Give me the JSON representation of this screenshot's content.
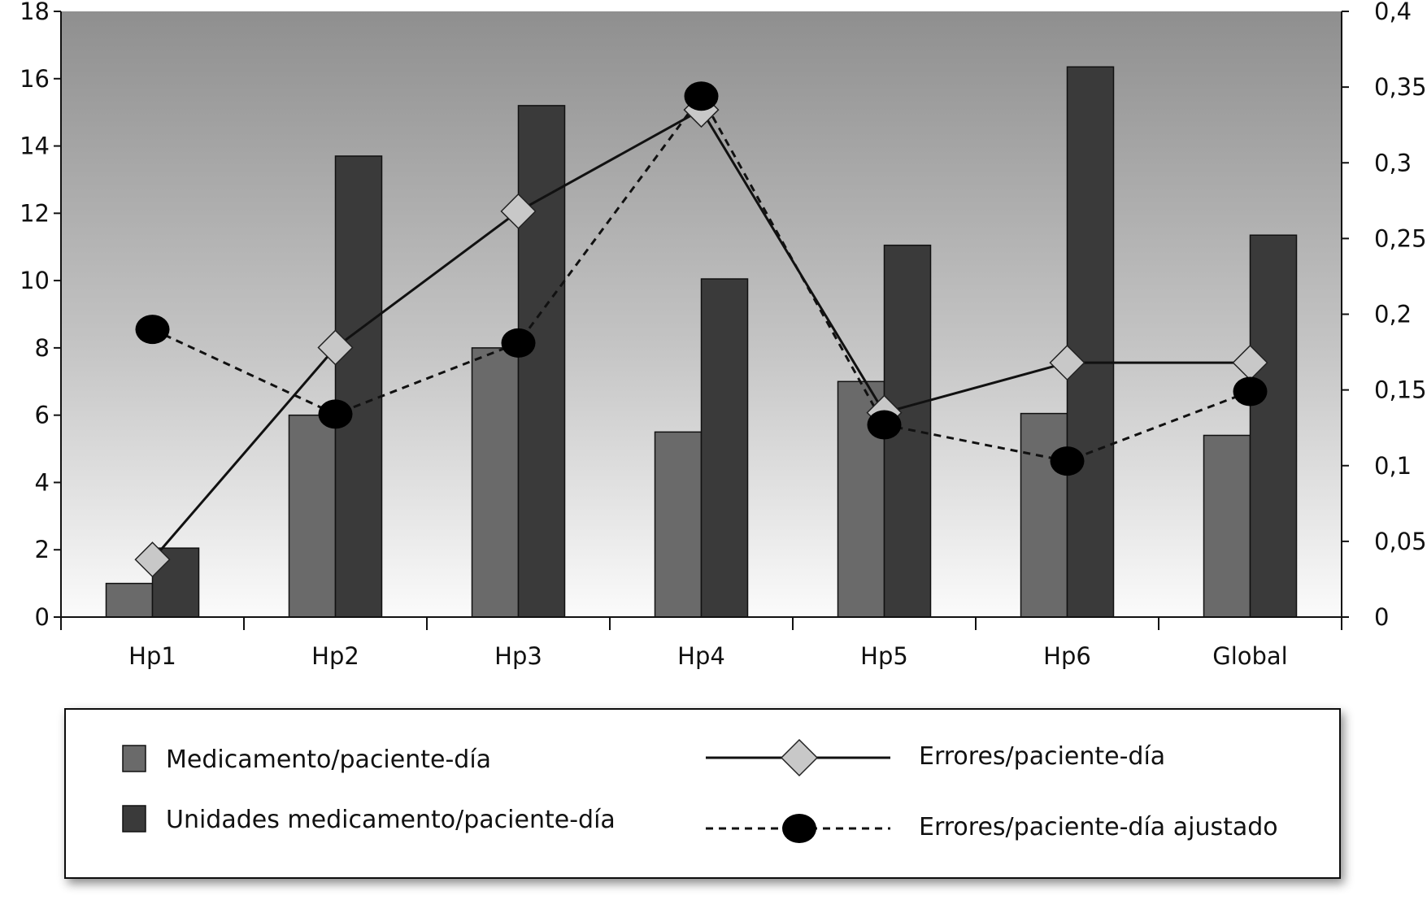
{
  "chart_data": {
    "type": "bar",
    "categories": [
      "Hp1",
      "Hp2",
      "Hp3",
      "Hp4",
      "Hp5",
      "Hp6",
      "Global"
    ],
    "y_left": {
      "ylim": [
        0,
        18
      ],
      "ticks": [
        "0",
        "2",
        "4",
        "6",
        "8",
        "10",
        "12",
        "14",
        "16",
        "18"
      ]
    },
    "y_right": {
      "ylim": [
        0,
        0.4
      ],
      "ticks": [
        "0",
        "0,05",
        "0,1",
        "0,15",
        "0,2",
        "0,25",
        "0,3",
        "0,35",
        "0,4"
      ]
    },
    "grid": false,
    "legend_position": "bottom",
    "series": [
      {
        "name": "Medicamento/paciente-día",
        "type": "bar",
        "axis": "left",
        "color": "#6a6a6a",
        "values": [
          1.0,
          6.0,
          8.0,
          5.5,
          7.0,
          6.05,
          5.4
        ]
      },
      {
        "name": "Unidades medicamento/paciente-día",
        "type": "bar",
        "axis": "left",
        "color": "#3a3a3a",
        "values": [
          2.05,
          13.7,
          15.2,
          10.05,
          11.05,
          16.35,
          11.35
        ]
      },
      {
        "name": "Errores/paciente-día",
        "type": "line",
        "axis": "right",
        "color": "#111111",
        "marker": "diamond",
        "marker_color": "#c8c8c8",
        "line_style": "solid",
        "values": [
          0.038,
          0.178,
          0.268,
          0.335,
          0.135,
          0.168,
          0.168
        ]
      },
      {
        "name": "Errores/paciente-día ajustado",
        "type": "line",
        "axis": "right",
        "color": "#111111",
        "marker": "circle",
        "marker_color": "#000000",
        "line_style": "dashed",
        "values": [
          0.19,
          0.134,
          0.181,
          0.344,
          0.127,
          0.103,
          0.149
        ]
      }
    ]
  }
}
